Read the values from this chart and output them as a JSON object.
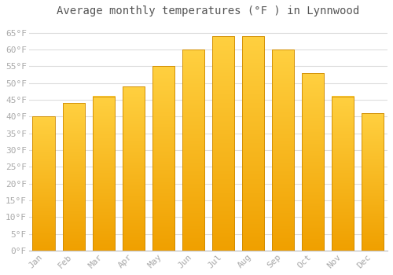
{
  "title": "Average monthly temperatures (°F ) in Lynnwood",
  "months": [
    "Jan",
    "Feb",
    "Mar",
    "Apr",
    "May",
    "Jun",
    "Jul",
    "Aug",
    "Sep",
    "Oct",
    "Nov",
    "Dec"
  ],
  "values": [
    40,
    44,
    46,
    49,
    55,
    60,
    64,
    64,
    60,
    53,
    46,
    41
  ],
  "bar_color_top": "#FFD040",
  "bar_color_bottom": "#F0A000",
  "bar_color_edge": "#CC8800",
  "ylim": [
    0,
    68
  ],
  "yticks": [
    0,
    5,
    10,
    15,
    20,
    25,
    30,
    35,
    40,
    45,
    50,
    55,
    60,
    65
  ],
  "ytick_labels": [
    "0°F",
    "5°F",
    "10°F",
    "15°F",
    "20°F",
    "25°F",
    "30°F",
    "35°F",
    "40°F",
    "45°F",
    "50°F",
    "55°F",
    "60°F",
    "65°F"
  ],
  "background_color": "#ffffff",
  "grid_color": "#dddddd",
  "title_fontsize": 10,
  "tick_fontsize": 8,
  "tick_color": "#aaaaaa",
  "title_color": "#555555",
  "title_font": "monospace"
}
